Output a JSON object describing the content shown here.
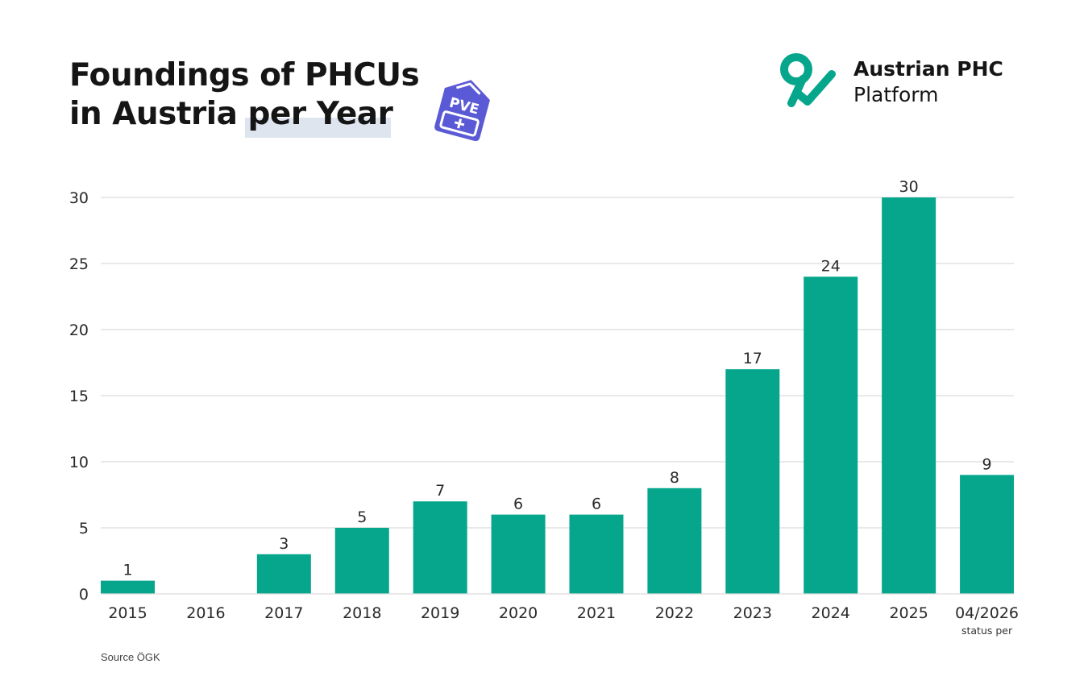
{
  "header": {
    "title_line1": "Foundings of PHCUs",
    "title_line2": "in Austria per Year",
    "badge_text": "PVE",
    "brand_line1": "Austrian PHC",
    "brand_line2": "Platform"
  },
  "footer": {
    "source": "Source ÖGK"
  },
  "colors": {
    "bar": "#05a68b",
    "grid": "#dcdcdc",
    "badge": "#5b5ad6",
    "logo": "#05a68b"
  },
  "chart_data": {
    "type": "bar",
    "categories": [
      "2015",
      "2016",
      "2017",
      "2018",
      "2019",
      "2020",
      "2021",
      "2022",
      "2023",
      "2024",
      "2025",
      "04/2026"
    ],
    "category_notes": [
      "",
      "",
      "",
      "",
      "",
      "",
      "",
      "",
      "",
      "",
      "",
      "status per"
    ],
    "values": [
      1,
      0,
      3,
      5,
      7,
      6,
      6,
      8,
      17,
      24,
      30,
      9
    ],
    "data_labels": [
      "1",
      "",
      "3",
      "5",
      "7",
      "6",
      "6",
      "8",
      "17",
      "24",
      "30",
      "9"
    ],
    "yticks": [
      0,
      5,
      10,
      15,
      20,
      25,
      30
    ],
    "ylim": [
      0,
      30
    ],
    "grid": true,
    "title": "Foundings of PHCUs in Austria per Year"
  }
}
